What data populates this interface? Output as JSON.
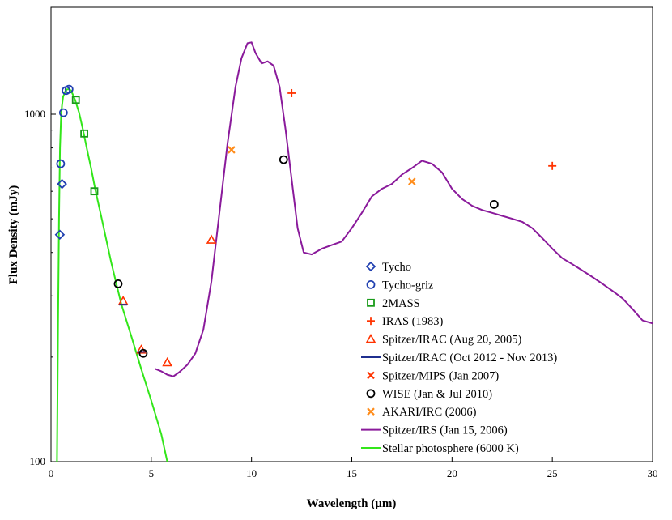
{
  "chart_data": {
    "type": "scatter",
    "title": "",
    "xlabel": "Wavelength (µm)",
    "ylabel": "Flux Density (mJy)",
    "xlim": [
      0,
      30
    ],
    "ylim": [
      100,
      2000
    ],
    "yscale": "log",
    "grid": false,
    "legend_position": "right",
    "x_ticks": [
      0,
      5,
      10,
      15,
      20,
      25,
      30
    ],
    "x_tick_labels": [
      "0",
      "5",
      "10",
      "15",
      "20",
      "25",
      "30"
    ],
    "y_ticks": [
      100,
      1000
    ],
    "y_tick_labels": [
      "100",
      "1000"
    ],
    "series": [
      {
        "name": "Tycho",
        "marker": "diamond",
        "color": "#1f3fb0",
        "x": [
          0.44,
          0.55
        ],
        "y": [
          450,
          630
        ]
      },
      {
        "name": "Tycho-griz",
        "marker": "circle",
        "color": "#1f3fb0",
        "x": [
          0.48,
          0.62,
          0.75,
          0.9
        ],
        "y": [
          720,
          1010,
          1170,
          1180
        ]
      },
      {
        "name": "2MASS",
        "marker": "square",
        "color": "#1a9b1a",
        "x": [
          1.24,
          1.66,
          2.16
        ],
        "y": [
          1100,
          880,
          600
        ]
      },
      {
        "name": "IRAS (1983)",
        "marker": "plus",
        "color": "#ff3300",
        "x": [
          12,
          25
        ],
        "y": [
          1150,
          710
        ]
      },
      {
        "name": "Spitzer/IRAC (Aug 20, 2005)",
        "marker": "triangle",
        "color": "#ff3300",
        "x": [
          3.6,
          4.5,
          5.8,
          8.0
        ],
        "y": [
          290,
          210,
          193,
          435
        ]
      },
      {
        "name": "Spitzer/IRAC (Oct 2012 - Nov 2013)",
        "marker": "hline",
        "color": "#1f2f8f",
        "x": [
          3.6,
          4.5
        ],
        "y": [
          283,
          207
        ]
      },
      {
        "name": "Spitzer/MIPS (Jan 2007)",
        "marker": "x",
        "color": "#ff3300",
        "x": [],
        "y": []
      },
      {
        "name": "WISE (Jan & Jul 2010)",
        "marker": "circle",
        "color": "#000000",
        "x": [
          3.35,
          4.6,
          11.6,
          22.1
        ],
        "y": [
          325,
          205,
          740,
          550
        ]
      },
      {
        "name": "AKARI/IRC (2006)",
        "marker": "x",
        "color": "#ff8c1a",
        "x": [
          9.0,
          18.0
        ],
        "y": [
          790,
          640
        ]
      },
      {
        "name": "Spitzer/IRS (Jan 15, 2006)",
        "marker": "line",
        "color": "#8a1a9b",
        "x": [
          5.2,
          5.5,
          5.8,
          6.1,
          6.4,
          6.8,
          7.2,
          7.6,
          8.0,
          8.4,
          8.8,
          9.2,
          9.5,
          9.8,
          10.0,
          10.2,
          10.5,
          10.8,
          11.1,
          11.4,
          11.7,
          12.0,
          12.3,
          12.6,
          13.0,
          13.5,
          14.0,
          14.5,
          15.0,
          15.5,
          16.0,
          16.5,
          17.0,
          17.5,
          18.0,
          18.5,
          19.0,
          19.5,
          20.0,
          20.5,
          21.0,
          21.5,
          22.0,
          22.5,
          23.0,
          23.5,
          24.0,
          24.5,
          25.0,
          25.5,
          26.0,
          26.5,
          27.0,
          27.5,
          28.0,
          28.5,
          29.0,
          29.5,
          30.0
        ],
        "y": [
          185,
          182,
          178,
          176,
          181,
          190,
          205,
          240,
          330,
          520,
          820,
          1200,
          1450,
          1600,
          1610,
          1500,
          1400,
          1420,
          1380,
          1200,
          900,
          650,
          470,
          400,
          395,
          410,
          420,
          430,
          470,
          520,
          580,
          610,
          630,
          670,
          700,
          735,
          720,
          680,
          610,
          570,
          545,
          530,
          520,
          510,
          500,
          490,
          470,
          440,
          410,
          385,
          370,
          355,
          340,
          325,
          310,
          295,
          275,
          255,
          250
        ]
      },
      {
        "name": "Stellar photosphere (6000 K)",
        "marker": "line",
        "color": "#33e61a",
        "x": [
          0.3,
          0.35,
          0.4,
          0.45,
          0.5,
          0.55,
          0.6,
          0.7,
          0.8,
          0.9,
          1.0,
          1.2,
          1.4,
          1.6,
          1.8,
          2.0,
          2.2,
          2.5,
          3.0,
          3.5,
          4.0,
          4.5,
          5.0,
          5.5,
          5.8
        ],
        "y": [
          100,
          250,
          500,
          800,
          980,
          1060,
          1120,
          1160,
          1180,
          1180,
          1170,
          1100,
          1010,
          900,
          790,
          700,
          610,
          510,
          375,
          285,
          230,
          185,
          150,
          120,
          100
        ]
      }
    ]
  }
}
